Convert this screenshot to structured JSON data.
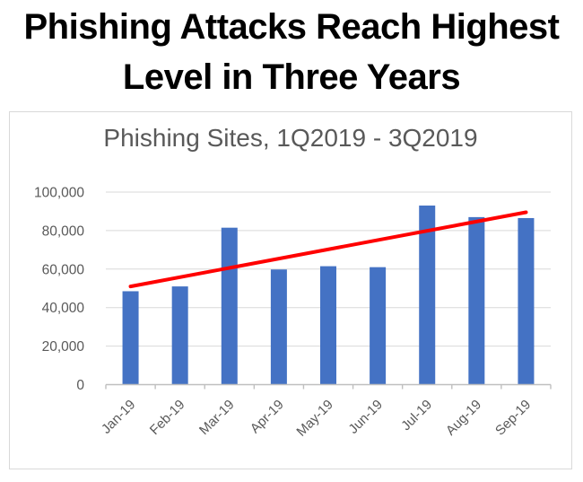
{
  "heading": {
    "line1": "Phishing Attacks Reach Highest",
    "line2": "Level in Three Years",
    "color": "#000000"
  },
  "chart": {
    "title": "Phishing Sites, 1Q2019 - 3Q2019",
    "title_color": "#595959",
    "panel_border_color": "#d9d9d9"
  },
  "chart_data": {
    "type": "bar",
    "title": "Phishing Sites, 1Q2019 - 3Q2019",
    "categories": [
      "Jan-19",
      "Feb-19",
      "Mar-19",
      "Apr-19",
      "May-19",
      "Jun-19",
      "Jul-19",
      "Aug-19",
      "Sep-19"
    ],
    "values": [
      48500,
      51000,
      81500,
      59800,
      61500,
      61000,
      93000,
      87000,
      86500
    ],
    "series_name": "Phishing Sites",
    "xlabel": "",
    "ylabel": "",
    "ylim": [
      0,
      100000
    ],
    "ytick_interval": 20000,
    "ytick_labels": [
      "0",
      "20,000",
      "40,000",
      "60,000",
      "80,000",
      "100,000"
    ],
    "grid": true,
    "legend": false,
    "bar_color": "#4472c4",
    "gridline_color": "#d9d9d9",
    "axis_color": "#bfbfbf",
    "label_color": "#595959",
    "trendline": {
      "type": "linear",
      "color": "#ff0000",
      "start_value": 51000,
      "end_value": 89500
    }
  }
}
